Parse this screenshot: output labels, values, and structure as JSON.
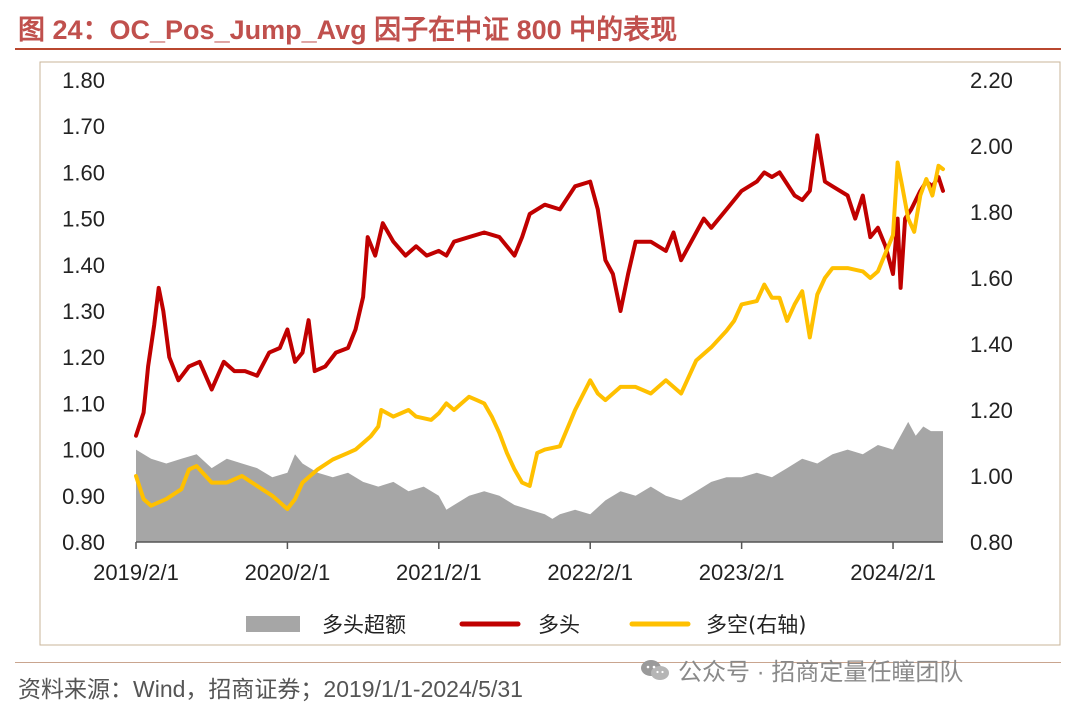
{
  "header": {
    "title": "图 24：OC_Pos_Jump_Avg 因子在中证 800 中的表现"
  },
  "footer": {
    "source": "资料来源：Wind，招商证券；2019/1/1-2024/5/31",
    "watermark": "公众号 · 招商定量任瞳团队",
    "watermark_icon": "wechat-icon"
  },
  "colors": {
    "excess": "#a6a6a6",
    "long": "#c00000",
    "long_short": "#ffc000",
    "title": "#c0504d"
  },
  "chart_data": {
    "type": "line",
    "title": "OC_Pos_Jump_Avg 因子在中证 800 中的表现",
    "xlabel": "",
    "ylabel": "",
    "ylabel_right": "",
    "x_ticks": [
      "2019/2/1",
      "2020/2/1",
      "2021/2/1",
      "2022/2/1",
      "2023/2/1",
      "2024/2/1"
    ],
    "x_tick_years": [
      2019.0,
      2020.0,
      2021.0,
      2022.0,
      2023.0,
      2024.0
    ],
    "xlim": [
      2019.0,
      2024.33
    ],
    "ylim_left": [
      0.8,
      1.8
    ],
    "ylim_right": [
      0.8,
      2.2
    ],
    "left_ticks": [
      "1.80",
      "1.70",
      "1.60",
      "1.50",
      "1.40",
      "1.30",
      "1.20",
      "1.10",
      "1.00",
      "0.90",
      "0.80"
    ],
    "right_ticks": [
      "2.20",
      "2.00",
      "1.80",
      "1.60",
      "1.40",
      "1.20",
      "1.00",
      "0.80"
    ],
    "legend": [
      {
        "name": "多头超额",
        "style": "area"
      },
      {
        "name": "多头",
        "style": "line"
      },
      {
        "name": "多空(右轴)",
        "style": "line"
      }
    ],
    "legend_position": "bottom",
    "series": [
      {
        "name": "多头超额",
        "axis": "left",
        "kind": "area",
        "points": [
          [
            2019.0,
            1.0
          ],
          [
            2019.1,
            0.98
          ],
          [
            2019.2,
            0.97
          ],
          [
            2019.3,
            0.98
          ],
          [
            2019.4,
            0.99
          ],
          [
            2019.5,
            0.96
          ],
          [
            2019.6,
            0.98
          ],
          [
            2019.7,
            0.97
          ],
          [
            2019.8,
            0.96
          ],
          [
            2019.9,
            0.94
          ],
          [
            2020.0,
            0.95
          ],
          [
            2020.05,
            0.99
          ],
          [
            2020.1,
            0.97
          ],
          [
            2020.2,
            0.95
          ],
          [
            2020.3,
            0.94
          ],
          [
            2020.4,
            0.95
          ],
          [
            2020.5,
            0.93
          ],
          [
            2020.6,
            0.92
          ],
          [
            2020.7,
            0.93
          ],
          [
            2020.8,
            0.91
          ],
          [
            2020.9,
            0.92
          ],
          [
            2021.0,
            0.9
          ],
          [
            2021.05,
            0.87
          ],
          [
            2021.1,
            0.88
          ],
          [
            2021.2,
            0.9
          ],
          [
            2021.3,
            0.91
          ],
          [
            2021.4,
            0.9
          ],
          [
            2021.5,
            0.88
          ],
          [
            2021.6,
            0.87
          ],
          [
            2021.7,
            0.86
          ],
          [
            2021.75,
            0.85
          ],
          [
            2021.8,
            0.86
          ],
          [
            2021.9,
            0.87
          ],
          [
            2022.0,
            0.86
          ],
          [
            2022.1,
            0.89
          ],
          [
            2022.2,
            0.91
          ],
          [
            2022.3,
            0.9
          ],
          [
            2022.4,
            0.92
          ],
          [
            2022.5,
            0.9
          ],
          [
            2022.6,
            0.89
          ],
          [
            2022.7,
            0.91
          ],
          [
            2022.8,
            0.93
          ],
          [
            2022.9,
            0.94
          ],
          [
            2023.0,
            0.94
          ],
          [
            2023.1,
            0.95
          ],
          [
            2023.2,
            0.94
          ],
          [
            2023.3,
            0.96
          ],
          [
            2023.4,
            0.98
          ],
          [
            2023.5,
            0.97
          ],
          [
            2023.6,
            0.99
          ],
          [
            2023.7,
            1.0
          ],
          [
            2023.8,
            0.99
          ],
          [
            2023.9,
            1.01
          ],
          [
            2024.0,
            1.0
          ],
          [
            2024.05,
            1.03
          ],
          [
            2024.1,
            1.06
          ],
          [
            2024.15,
            1.03
          ],
          [
            2024.2,
            1.05
          ],
          [
            2024.25,
            1.04
          ],
          [
            2024.33,
            1.04
          ]
        ]
      },
      {
        "name": "多头",
        "axis": "left",
        "kind": "line",
        "points": [
          [
            2019.0,
            1.03
          ],
          [
            2019.05,
            1.08
          ],
          [
            2019.08,
            1.18
          ],
          [
            2019.12,
            1.27
          ],
          [
            2019.15,
            1.35
          ],
          [
            2019.18,
            1.3
          ],
          [
            2019.22,
            1.2
          ],
          [
            2019.28,
            1.15
          ],
          [
            2019.35,
            1.18
          ],
          [
            2019.42,
            1.19
          ],
          [
            2019.5,
            1.13
          ],
          [
            2019.58,
            1.19
          ],
          [
            2019.65,
            1.17
          ],
          [
            2019.72,
            1.17
          ],
          [
            2019.8,
            1.16
          ],
          [
            2019.88,
            1.21
          ],
          [
            2019.95,
            1.22
          ],
          [
            2020.0,
            1.26
          ],
          [
            2020.05,
            1.19
          ],
          [
            2020.1,
            1.21
          ],
          [
            2020.14,
            1.28
          ],
          [
            2020.18,
            1.17
          ],
          [
            2020.25,
            1.18
          ],
          [
            2020.32,
            1.21
          ],
          [
            2020.4,
            1.22
          ],
          [
            2020.45,
            1.26
          ],
          [
            2020.5,
            1.33
          ],
          [
            2020.53,
            1.46
          ],
          [
            2020.58,
            1.42
          ],
          [
            2020.63,
            1.49
          ],
          [
            2020.7,
            1.45
          ],
          [
            2020.78,
            1.42
          ],
          [
            2020.85,
            1.44
          ],
          [
            2020.92,
            1.42
          ],
          [
            2021.0,
            1.43
          ],
          [
            2021.05,
            1.42
          ],
          [
            2021.1,
            1.45
          ],
          [
            2021.2,
            1.46
          ],
          [
            2021.3,
            1.47
          ],
          [
            2021.4,
            1.46
          ],
          [
            2021.5,
            1.42
          ],
          [
            2021.55,
            1.46
          ],
          [
            2021.6,
            1.51
          ],
          [
            2021.7,
            1.53
          ],
          [
            2021.8,
            1.52
          ],
          [
            2021.9,
            1.57
          ],
          [
            2022.0,
            1.58
          ],
          [
            2022.05,
            1.52
          ],
          [
            2022.1,
            1.41
          ],
          [
            2022.15,
            1.38
          ],
          [
            2022.2,
            1.3
          ],
          [
            2022.25,
            1.38
          ],
          [
            2022.3,
            1.45
          ],
          [
            2022.4,
            1.45
          ],
          [
            2022.5,
            1.43
          ],
          [
            2022.55,
            1.47
          ],
          [
            2022.6,
            1.41
          ],
          [
            2022.7,
            1.47
          ],
          [
            2022.75,
            1.5
          ],
          [
            2022.8,
            1.48
          ],
          [
            2022.9,
            1.52
          ],
          [
            2023.0,
            1.56
          ],
          [
            2023.1,
            1.58
          ],
          [
            2023.15,
            1.6
          ],
          [
            2023.2,
            1.59
          ],
          [
            2023.25,
            1.6
          ],
          [
            2023.35,
            1.55
          ],
          [
            2023.4,
            1.54
          ],
          [
            2023.45,
            1.56
          ],
          [
            2023.5,
            1.68
          ],
          [
            2023.55,
            1.58
          ],
          [
            2023.6,
            1.57
          ],
          [
            2023.7,
            1.55
          ],
          [
            2023.75,
            1.5
          ],
          [
            2023.8,
            1.55
          ],
          [
            2023.85,
            1.46
          ],
          [
            2023.9,
            1.48
          ],
          [
            2023.95,
            1.44
          ],
          [
            2024.0,
            1.38
          ],
          [
            2024.03,
            1.5
          ],
          [
            2024.05,
            1.35
          ],
          [
            2024.08,
            1.5
          ],
          [
            2024.12,
            1.52
          ],
          [
            2024.18,
            1.56
          ],
          [
            2024.22,
            1.58
          ],
          [
            2024.26,
            1.57
          ],
          [
            2024.3,
            1.59
          ],
          [
            2024.33,
            1.56
          ]
        ]
      },
      {
        "name": "多空(右轴)",
        "axis": "right",
        "kind": "line",
        "points": [
          [
            2019.0,
            1.0
          ],
          [
            2019.05,
            0.93
          ],
          [
            2019.1,
            0.91
          ],
          [
            2019.2,
            0.93
          ],
          [
            2019.3,
            0.96
          ],
          [
            2019.35,
            1.02
          ],
          [
            2019.4,
            1.03
          ],
          [
            2019.5,
            0.98
          ],
          [
            2019.6,
            0.98
          ],
          [
            2019.7,
            1.0
          ],
          [
            2019.8,
            0.97
          ],
          [
            2019.9,
            0.94
          ],
          [
            2020.0,
            0.9
          ],
          [
            2020.05,
            0.93
          ],
          [
            2020.1,
            0.98
          ],
          [
            2020.2,
            1.02
          ],
          [
            2020.3,
            1.05
          ],
          [
            2020.4,
            1.07
          ],
          [
            2020.45,
            1.08
          ],
          [
            2020.5,
            1.1
          ],
          [
            2020.55,
            1.12
          ],
          [
            2020.6,
            1.15
          ],
          [
            2020.62,
            1.2
          ],
          [
            2020.7,
            1.18
          ],
          [
            2020.8,
            1.2
          ],
          [
            2020.85,
            1.18
          ],
          [
            2020.95,
            1.17
          ],
          [
            2021.0,
            1.19
          ],
          [
            2021.05,
            1.22
          ],
          [
            2021.1,
            1.2
          ],
          [
            2021.15,
            1.22
          ],
          [
            2021.2,
            1.24
          ],
          [
            2021.25,
            1.23
          ],
          [
            2021.3,
            1.22
          ],
          [
            2021.35,
            1.18
          ],
          [
            2021.4,
            1.13
          ],
          [
            2021.45,
            1.07
          ],
          [
            2021.5,
            1.02
          ],
          [
            2021.55,
            0.98
          ],
          [
            2021.6,
            0.97
          ],
          [
            2021.65,
            1.07
          ],
          [
            2021.7,
            1.08
          ],
          [
            2021.8,
            1.09
          ],
          [
            2021.9,
            1.2
          ],
          [
            2022.0,
            1.29
          ],
          [
            2022.05,
            1.25
          ],
          [
            2022.1,
            1.23
          ],
          [
            2022.2,
            1.27
          ],
          [
            2022.3,
            1.27
          ],
          [
            2022.4,
            1.25
          ],
          [
            2022.5,
            1.29
          ],
          [
            2022.6,
            1.25
          ],
          [
            2022.7,
            1.35
          ],
          [
            2022.8,
            1.39
          ],
          [
            2022.9,
            1.44
          ],
          [
            2022.95,
            1.47
          ],
          [
            2023.0,
            1.52
          ],
          [
            2023.1,
            1.53
          ],
          [
            2023.15,
            1.58
          ],
          [
            2023.2,
            1.54
          ],
          [
            2023.25,
            1.54
          ],
          [
            2023.3,
            1.47
          ],
          [
            2023.35,
            1.52
          ],
          [
            2023.4,
            1.56
          ],
          [
            2023.45,
            1.42
          ],
          [
            2023.5,
            1.55
          ],
          [
            2023.55,
            1.6
          ],
          [
            2023.6,
            1.63
          ],
          [
            2023.7,
            1.63
          ],
          [
            2023.8,
            1.62
          ],
          [
            2023.85,
            1.6
          ],
          [
            2023.9,
            1.62
          ],
          [
            2024.0,
            1.73
          ],
          [
            2024.03,
            1.95
          ],
          [
            2024.06,
            1.88
          ],
          [
            2024.1,
            1.78
          ],
          [
            2024.14,
            1.74
          ],
          [
            2024.18,
            1.85
          ],
          [
            2024.22,
            1.9
          ],
          [
            2024.26,
            1.85
          ],
          [
            2024.3,
            1.94
          ],
          [
            2024.33,
            1.93
          ]
        ]
      }
    ]
  }
}
